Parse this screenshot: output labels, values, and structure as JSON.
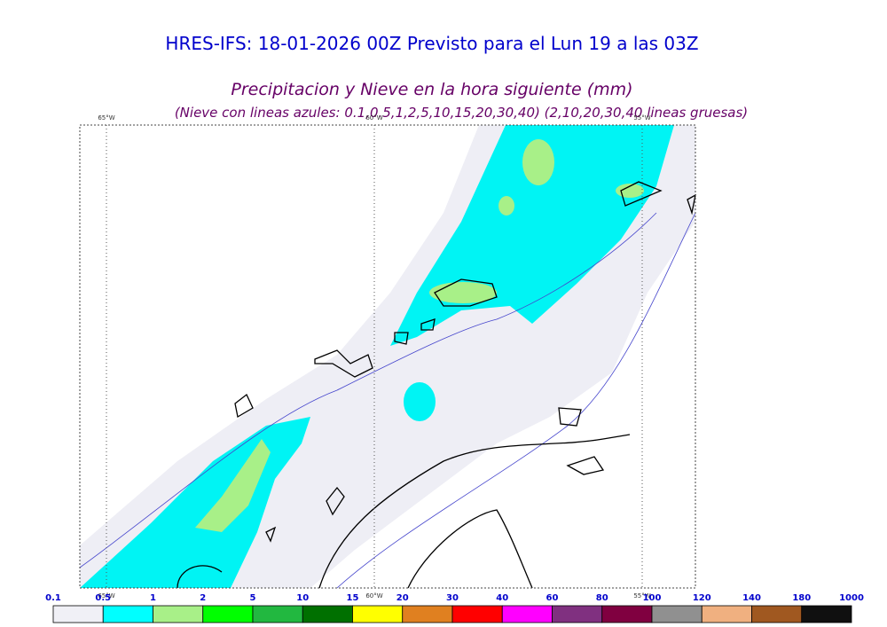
{
  "header": {
    "title": "HRES-IFS: 18-01-2026 00Z Previsto para el Lun 19 a las 03Z",
    "subtitle": "Precipitacion y Nieve en la hora siguiente (mm)",
    "note": "(Nieve con lineas azules: 0.1,0.5,1,2,5,10,15,20,30,40)  (2,10,20,30,40 lineas gruesas)"
  },
  "map": {
    "meridians": [
      "65°W",
      "60°W",
      "55°W"
    ]
  },
  "legend": {
    "labels": [
      "0.1",
      "0.5",
      "1",
      "2",
      "5",
      "10",
      "15",
      "20",
      "30",
      "40",
      "60",
      "80",
      "100",
      "120",
      "140",
      "180",
      "1000"
    ],
    "colors": [
      "#f0f0f6",
      "#00ffff",
      "#a8f088",
      "#00ff00",
      "#22b840",
      "#007000",
      "#ffff00",
      "#e08020",
      "#ff0000",
      "#ff00ff",
      "#803080",
      "#800040",
      "#909090",
      "#f0b080",
      "#a05820",
      "#101010"
    ]
  }
}
